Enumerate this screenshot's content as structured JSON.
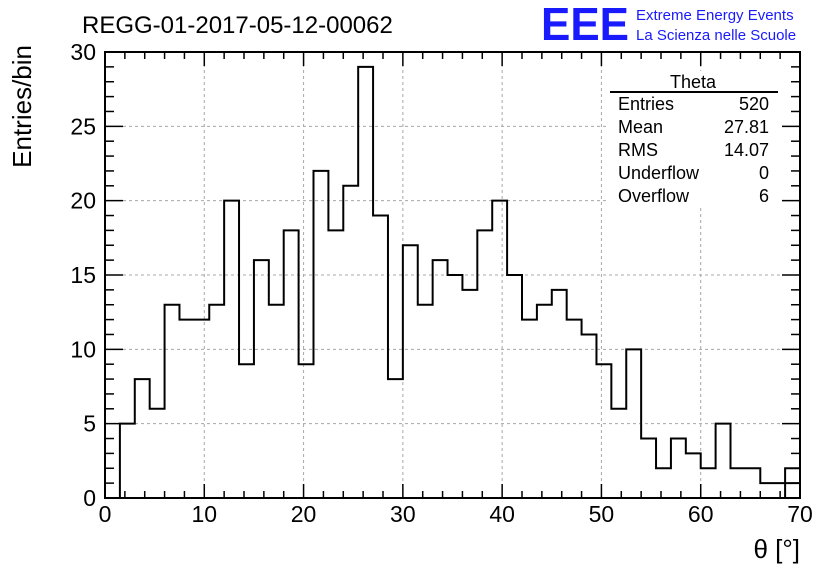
{
  "header": {
    "run_title": "REGG-01-2017-05-12-00062",
    "logo_text": "EEE",
    "logo_line1": "Extreme Energy Events",
    "logo_line2": "La Scienza nelle Scuole",
    "logo_color": "#1a1aff"
  },
  "stats": {
    "title": "Theta",
    "rows": [
      {
        "label": "Entries",
        "value": "520"
      },
      {
        "label": "Mean",
        "value": "27.81"
      },
      {
        "label": "RMS",
        "value": "14.07"
      },
      {
        "label": "Underflow",
        "value": "0"
      },
      {
        "label": "Overflow",
        "value": "6"
      }
    ]
  },
  "chart_data": {
    "type": "bar",
    "histogram": true,
    "title": "",
    "xlabel": "θ [°]",
    "ylabel": "Entries/bin",
    "xlim": [
      0,
      70
    ],
    "ylim": [
      0,
      30
    ],
    "bin_width": 1.5,
    "bin_start": 0,
    "xticks": [
      0,
      10,
      20,
      30,
      40,
      50,
      60,
      70
    ],
    "yticks": [
      0,
      5,
      10,
      15,
      20,
      25,
      30
    ],
    "grid": true,
    "values": [
      0,
      5,
      8,
      6,
      13,
      12,
      12,
      13,
      20,
      9,
      16,
      13,
      18,
      9,
      22,
      18,
      21,
      29,
      19,
      8,
      17,
      13,
      16,
      15,
      14,
      18,
      20,
      15,
      12,
      13,
      14,
      12,
      11,
      9,
      6,
      10,
      4,
      2,
      4,
      3,
      2,
      5,
      2,
      2,
      1,
      1,
      1,
      0,
      0,
      0,
      0,
      0,
      0,
      0,
      0,
      0,
      0,
      0,
      0,
      0,
      0,
      0,
      0,
      0,
      0,
      0,
      0
    ],
    "tail_bin": {
      "x_start": 68.5,
      "x_end": 70,
      "value": 2
    }
  }
}
